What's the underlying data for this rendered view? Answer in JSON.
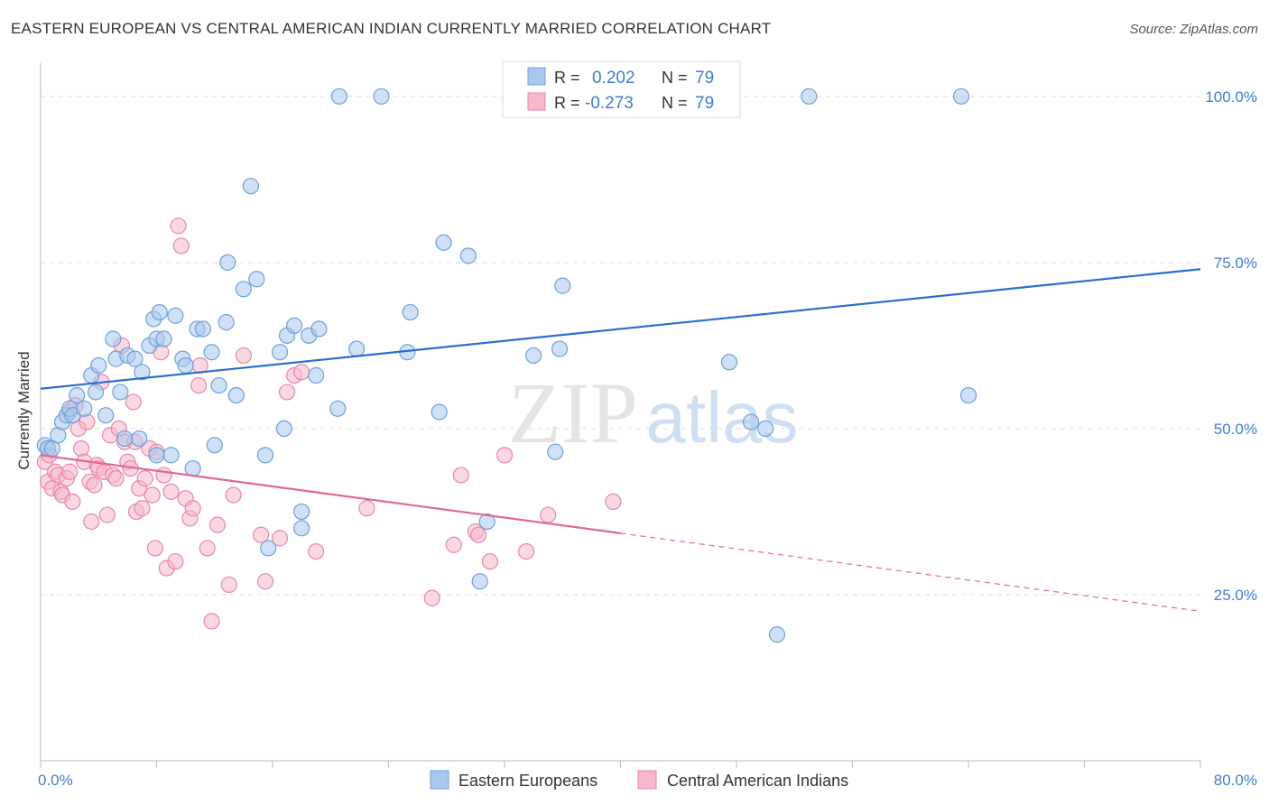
{
  "header": {
    "title": "EASTERN EUROPEAN VS CENTRAL AMERICAN INDIAN CURRENTLY MARRIED CORRELATION CHART",
    "source": "Source: ZipAtlas.com"
  },
  "watermark": {
    "zip": "ZIP",
    "atlas": "atlas"
  },
  "colors": {
    "blue_fill": "#a8c8ee",
    "blue_stroke": "#6f9fd8",
    "blue_line": "#2a6fcb",
    "pink_fill": "#f6b8ca",
    "pink_stroke": "#e887a6",
    "pink_line": "#e06895",
    "axis_label": "#3f7ed0",
    "grid": "#dddddd"
  },
  "legend_box": {
    "rows": [
      {
        "r_label": "R =",
        "r_value": "0.202",
        "n_label": "N =",
        "n_value": "79"
      },
      {
        "r_label": "R =",
        "r_value": "-0.273",
        "n_label": "N =",
        "n_value": "79"
      }
    ]
  },
  "chart_data": {
    "type": "scatter",
    "ylabel": "Currently Married",
    "xlim": [
      0,
      80
    ],
    "ylim": [
      0,
      105
    ],
    "x_tick_labels": [
      "0.0%",
      "80.0%"
    ],
    "y_ticks": [
      25,
      50,
      75,
      100
    ],
    "y_tick_labels": [
      "25.0%",
      "50.0%",
      "75.0%",
      "100.0%"
    ],
    "grid": true,
    "legend_position": "bottom",
    "series": [
      {
        "name": "Eastern Europeans",
        "trend": {
          "x": [
            0,
            80
          ],
          "y": [
            56.0,
            74.0
          ],
          "solid_until": 80
        },
        "points": [
          [
            0.3,
            47.5
          ],
          [
            0.5,
            47.0
          ],
          [
            0.8,
            47.0
          ],
          [
            1.2,
            49.0
          ],
          [
            1.5,
            51.0
          ],
          [
            1.8,
            52.0
          ],
          [
            2.0,
            53.0
          ],
          [
            2.2,
            52.0
          ],
          [
            3.0,
            53.0
          ],
          [
            3.5,
            58.0
          ],
          [
            3.8,
            55.5
          ],
          [
            4.0,
            59.5
          ],
          [
            4.5,
            52.0
          ],
          [
            5.0,
            63.5
          ],
          [
            5.2,
            60.5
          ],
          [
            5.5,
            55.5
          ],
          [
            5.8,
            48.5
          ],
          [
            6.0,
            61.0
          ],
          [
            6.5,
            60.5
          ],
          [
            6.8,
            48.5
          ],
          [
            7.0,
            58.5
          ],
          [
            7.5,
            62.5
          ],
          [
            7.8,
            66.5
          ],
          [
            8.0,
            63.5
          ],
          [
            8.2,
            67.5
          ],
          [
            8.5,
            63.5
          ],
          [
            9.0,
            46.0
          ],
          [
            9.3,
            67.0
          ],
          [
            9.8,
            60.5
          ],
          [
            10.0,
            59.5
          ],
          [
            10.5,
            44.0
          ],
          [
            10.8,
            65.0
          ],
          [
            11.2,
            65.0
          ],
          [
            11.8,
            61.5
          ],
          [
            12.0,
            47.5
          ],
          [
            12.3,
            56.5
          ],
          [
            12.8,
            66.0
          ],
          [
            12.9,
            75.0
          ],
          [
            13.5,
            55.0
          ],
          [
            14.0,
            71.0
          ],
          [
            14.5,
            86.5
          ],
          [
            14.9,
            72.5
          ],
          [
            15.5,
            46.0
          ],
          [
            15.7,
            32.0
          ],
          [
            16.5,
            61.5
          ],
          [
            16.8,
            50.0
          ],
          [
            17.0,
            64.0
          ],
          [
            17.5,
            65.5
          ],
          [
            18.0,
            37.5
          ],
          [
            18.0,
            35.0
          ],
          [
            18.5,
            64.0
          ],
          [
            19.0,
            58.0
          ],
          [
            19.2,
            65.0
          ],
          [
            20.5,
            53.0
          ],
          [
            20.6,
            100.0
          ],
          [
            21.8,
            62.0
          ],
          [
            23.5,
            100.0
          ],
          [
            25.3,
            61.5
          ],
          [
            25.5,
            67.5
          ],
          [
            27.5,
            52.5
          ],
          [
            27.8,
            78.0
          ],
          [
            29.5,
            76.0
          ],
          [
            30.3,
            27.0
          ],
          [
            30.8,
            36.0
          ],
          [
            34.0,
            61.0
          ],
          [
            34.5,
            100.0
          ],
          [
            35.5,
            46.5
          ],
          [
            35.8,
            62.0
          ],
          [
            36.0,
            71.5
          ],
          [
            39.0,
            100.0
          ],
          [
            47.5,
            60.0
          ],
          [
            49.0,
            51.0
          ],
          [
            50.0,
            50.0
          ],
          [
            50.8,
            19.0
          ],
          [
            53.0,
            100.0
          ],
          [
            63.5,
            100.0
          ],
          [
            64.0,
            55.0
          ],
          [
            2.5,
            55.0
          ],
          [
            8.0,
            46.0
          ]
        ]
      },
      {
        "name": "Central American Indians",
        "trend": {
          "x": [
            0,
            80
          ],
          "y": [
            46.0,
            22.5
          ],
          "solid_until": 40
        },
        "points": [
          [
            0.3,
            45.0
          ],
          [
            0.5,
            42.0
          ],
          [
            0.6,
            46.0
          ],
          [
            0.8,
            41.0
          ],
          [
            1.0,
            43.5
          ],
          [
            1.2,
            43.0
          ],
          [
            1.4,
            40.5
          ],
          [
            1.5,
            40.0
          ],
          [
            1.8,
            42.5
          ],
          [
            2.0,
            52.5
          ],
          [
            2.2,
            39.0
          ],
          [
            2.4,
            53.5
          ],
          [
            2.6,
            50.0
          ],
          [
            2.8,
            47.0
          ],
          [
            3.0,
            45.0
          ],
          [
            3.2,
            51.0
          ],
          [
            3.4,
            42.0
          ],
          [
            3.5,
            36.0
          ],
          [
            3.7,
            41.5
          ],
          [
            3.9,
            44.5
          ],
          [
            4.0,
            44.0
          ],
          [
            4.2,
            57.0
          ],
          [
            4.4,
            43.5
          ],
          [
            4.6,
            37.0
          ],
          [
            4.8,
            49.0
          ],
          [
            5.0,
            43.0
          ],
          [
            5.2,
            42.5
          ],
          [
            5.4,
            50.0
          ],
          [
            5.6,
            62.5
          ],
          [
            5.8,
            48.0
          ],
          [
            6.0,
            45.0
          ],
          [
            6.2,
            44.0
          ],
          [
            6.4,
            54.0
          ],
          [
            6.6,
            37.5
          ],
          [
            6.8,
            41.0
          ],
          [
            7.0,
            38.0
          ],
          [
            7.2,
            42.5
          ],
          [
            7.5,
            47.0
          ],
          [
            7.7,
            40.0
          ],
          [
            7.9,
            32.0
          ],
          [
            8.0,
            46.5
          ],
          [
            8.3,
            61.5
          ],
          [
            8.5,
            43.0
          ],
          [
            8.7,
            29.0
          ],
          [
            9.0,
            40.5
          ],
          [
            9.3,
            30.0
          ],
          [
            9.5,
            80.5
          ],
          [
            9.7,
            77.5
          ],
          [
            10.0,
            39.5
          ],
          [
            10.3,
            36.5
          ],
          [
            10.5,
            38.0
          ],
          [
            10.9,
            56.5
          ],
          [
            11.0,
            59.5
          ],
          [
            11.5,
            32.0
          ],
          [
            11.8,
            21.0
          ],
          [
            12.2,
            35.5
          ],
          [
            13.0,
            26.5
          ],
          [
            13.3,
            40.0
          ],
          [
            14.0,
            61.0
          ],
          [
            15.2,
            34.0
          ],
          [
            15.5,
            27.0
          ],
          [
            16.5,
            33.5
          ],
          [
            17.0,
            55.5
          ],
          [
            17.5,
            58.0
          ],
          [
            18.0,
            58.5
          ],
          [
            19.0,
            31.5
          ],
          [
            22.5,
            38.0
          ],
          [
            27.0,
            24.5
          ],
          [
            28.5,
            32.5
          ],
          [
            29.0,
            43.0
          ],
          [
            30.0,
            34.5
          ],
          [
            30.2,
            34.0
          ],
          [
            31.0,
            30.0
          ],
          [
            32.0,
            46.0
          ],
          [
            33.5,
            31.5
          ],
          [
            35.0,
            37.0
          ],
          [
            39.5,
            39.0
          ],
          [
            2.0,
            43.5
          ],
          [
            6.5,
            48.0
          ]
        ]
      }
    ]
  }
}
